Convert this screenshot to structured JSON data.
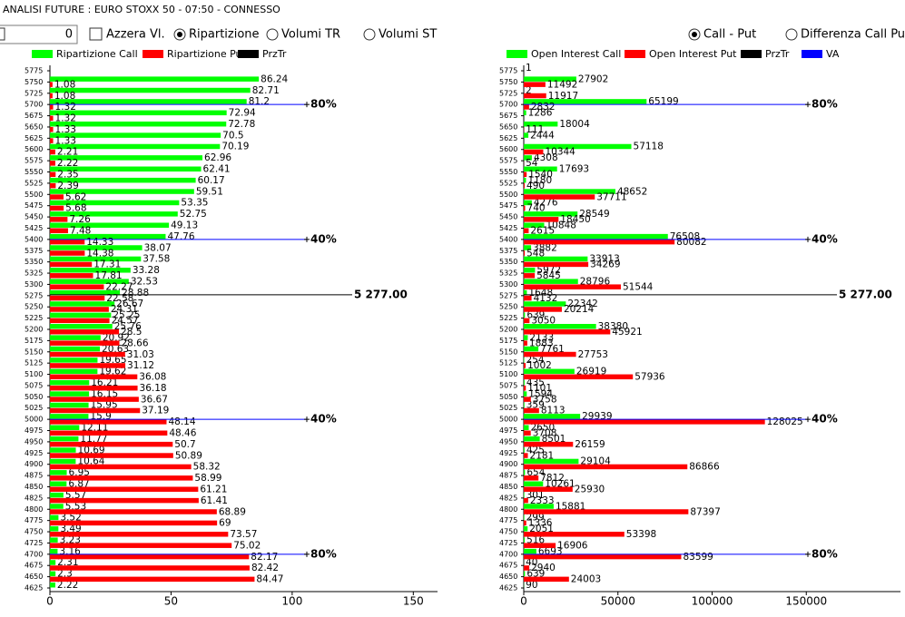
{
  "header": {
    "title": "ANALISI FUTURE : EURO STOXX 50 - 07:50 - CONNESSO"
  },
  "controls": {
    "input_value": "0",
    "checkbox": "Azzera Vl.",
    "left_radios": [
      {
        "label": "Ripartizione",
        "selected": true
      },
      {
        "label": "Volumi TR",
        "selected": false
      },
      {
        "label": "Volumi ST",
        "selected": false
      }
    ],
    "right_radios": [
      {
        "label": "Call - Put",
        "selected": true
      },
      {
        "label": "Differenza Call Put",
        "selected": false
      }
    ]
  },
  "chart_data": [
    {
      "type": "bar",
      "orientation": "horizontal",
      "categories": [
        5775,
        5750,
        5725,
        5700,
        5675,
        5650,
        5625,
        5600,
        5575,
        5550,
        5525,
        5500,
        5475,
        5450,
        5425,
        5400,
        5375,
        5350,
        5325,
        5300,
        5275,
        5250,
        5225,
        5200,
        5175,
        5150,
        5125,
        5100,
        5075,
        5050,
        5025,
        5000,
        4975,
        4950,
        4925,
        4900,
        4875,
        4850,
        4825,
        4800,
        4775,
        4750,
        4725,
        4700,
        4675,
        4650,
        4625
      ],
      "series": [
        {
          "name": "Ripartizione Call",
          "color": "#00ff00",
          "values": [
            null,
            86.24,
            82.71,
            81.2,
            72.94,
            72.78,
            70.5,
            70.19,
            62.96,
            62.41,
            60.17,
            59.51,
            53.35,
            52.75,
            49.13,
            47.76,
            38.07,
            37.58,
            33.28,
            32.53,
            28.88,
            26.67,
            25.25,
            25.76,
            20.92,
            20.63,
            19.65,
            19.62,
            16.21,
            16.15,
            15.95,
            15.9,
            12.11,
            11.77,
            10.69,
            10.64,
            6.95,
            6.87,
            5.57,
            5.53,
            3.52,
            3.49,
            3.23,
            3.16,
            2.31,
            2.3,
            2.22
          ]
        },
        {
          "name": "Ripartizione Put",
          "color": "#ff0000",
          "values": [
            null,
            1.08,
            1.08,
            1.32,
            1.32,
            1.33,
            1.33,
            2.21,
            2.22,
            2.35,
            2.39,
            5.62,
            5.68,
            7.26,
            7.48,
            14.33,
            14.38,
            17.31,
            17.81,
            22.27,
            22.58,
            24.31,
            24.57,
            28.5,
            28.66,
            31.03,
            31.12,
            36.08,
            36.18,
            36.67,
            37.19,
            48.14,
            48.46,
            50.7,
            50.89,
            58.32,
            58.99,
            61.21,
            61.41,
            68.89,
            69,
            73.57,
            75.02,
            82.17,
            82.42,
            84.47,
            null
          ]
        }
      ],
      "legend_extra": [
        {
          "name": "PrzTr",
          "color": "#000000"
        }
      ],
      "xlim": [
        0,
        160
      ],
      "xticks": [
        0,
        50,
        100,
        150
      ],
      "level_color": "#0000ff",
      "levels": [
        {
          "label": "80%",
          "value": 5700
        },
        {
          "label": "40%",
          "value": 5400
        },
        {
          "label": "40%",
          "value": 5000
        },
        {
          "label": "80%",
          "value": 4700
        }
      ],
      "price_line": {
        "label": "5 277.00",
        "value": 5277,
        "color": "#000000"
      }
    },
    {
      "type": "bar",
      "orientation": "horizontal",
      "categories": [
        5775,
        5750,
        5725,
        5700,
        5675,
        5650,
        5625,
        5600,
        5575,
        5550,
        5525,
        5500,
        5475,
        5450,
        5425,
        5400,
        5375,
        5350,
        5325,
        5300,
        5275,
        5250,
        5225,
        5200,
        5175,
        5150,
        5125,
        5100,
        5075,
        5050,
        5025,
        5000,
        4975,
        4950,
        4925,
        4900,
        4875,
        4850,
        4825,
        4800,
        4775,
        4750,
        4725,
        4700,
        4675,
        4650,
        4625
      ],
      "series": [
        {
          "name": "Open Interest Call",
          "color": "#00ff00",
          "values": [
            1,
            27902,
            2,
            65199,
            1286,
            18004,
            2444,
            57118,
            4308,
            17693,
            1180,
            48652,
            4276,
            28549,
            10848,
            76508,
            3882,
            33913,
            5972,
            28796,
            1648,
            22342,
            639,
            38380,
            2133,
            7761,
            254,
            26919,
            435,
            1594,
            359,
            29939,
            2650,
            8501,
            425,
            29104,
            654,
            10261,
            301,
            15881,
            299,
            2051,
            516,
            6693,
            40,
            639,
            90
          ]
        },
        {
          "name": "Open Interest Put",
          "color": "#ff0000",
          "values": [
            null,
            11492,
            11917,
            2832,
            null,
            111,
            null,
            10344,
            54,
            1540,
            490,
            37711,
            740,
            18450,
            2615,
            80082,
            548,
            34269,
            5845,
            51544,
            4132,
            20214,
            3050,
            45921,
            1883,
            27753,
            1002,
            57936,
            1101,
            3758,
            8113,
            128025,
            3708,
            26159,
            2181,
            86866,
            7812,
            25930,
            2333,
            87397,
            1336,
            53398,
            16906,
            83599,
            2940,
            24003,
            null
          ]
        }
      ],
      "legend_extra": [
        {
          "name": "PrzTr",
          "color": "#000000"
        },
        {
          "name": "VA",
          "color": "#0000ff"
        }
      ],
      "xlim": [
        0,
        200000
      ],
      "xticks": [
        0,
        50000,
        100000,
        150000
      ],
      "level_color": "#0000ff",
      "levels": [
        {
          "label": "80%",
          "value": 5700
        },
        {
          "label": "40%",
          "value": 5400
        },
        {
          "label": "40%",
          "value": 5000
        },
        {
          "label": "80%",
          "value": 4700
        }
      ],
      "price_line": {
        "label": "5 277.00",
        "value": 5277,
        "color": "#000000"
      }
    }
  ]
}
